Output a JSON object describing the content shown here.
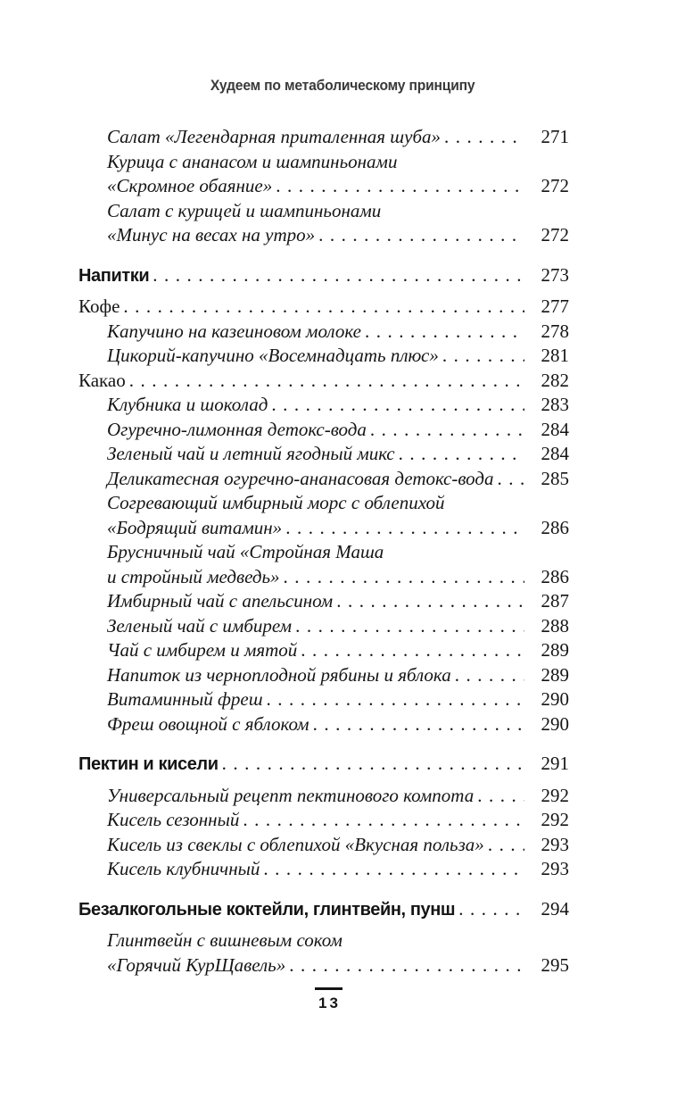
{
  "page": {
    "running_header": "Худеем по метаболическому принципу",
    "footer_page_number": "13"
  },
  "toc": {
    "entries": [
      {
        "style": "recipe",
        "lines": [
          "Салат «Легендарная приталенная шуба»"
        ],
        "page": "271"
      },
      {
        "style": "recipe",
        "lines": [
          "Курица с ананасом и шампиньонами",
          "«Скромное обаяние»"
        ],
        "page": "272"
      },
      {
        "style": "recipe",
        "lines": [
          "Салат с курицей и шампиньонами",
          "«Минус на весах на утро»"
        ],
        "page": "272"
      },
      {
        "style": "section",
        "lines": [
          "Напитки"
        ],
        "page": "273"
      },
      {
        "style": "chapter",
        "lines": [
          "Кофе"
        ],
        "page": "277"
      },
      {
        "style": "recipe",
        "lines": [
          "Капучино на казеиновом молоке"
        ],
        "page": "278"
      },
      {
        "style": "recipe",
        "lines": [
          "Цикорий-капучино «Восемнадцать плюс»"
        ],
        "page": "281"
      },
      {
        "style": "chapter",
        "lines": [
          "Какао"
        ],
        "page": "282"
      },
      {
        "style": "recipe",
        "lines": [
          "Клубника и шоколад"
        ],
        "page": "283"
      },
      {
        "style": "recipe",
        "lines": [
          "Огуречно-лимонная детокс-вода"
        ],
        "page": "284"
      },
      {
        "style": "recipe",
        "lines": [
          "Зеленый чай и летний ягодный микс"
        ],
        "page": "284"
      },
      {
        "style": "recipe",
        "lines": [
          "Деликатесная огуречно-ананасовая детокс-вода"
        ],
        "page": "285"
      },
      {
        "style": "recipe",
        "lines": [
          "Согревающий имбирный морс с облепихой",
          "«Бодрящий витамин»"
        ],
        "page": "286"
      },
      {
        "style": "recipe",
        "lines": [
          "Брусничный чай «Стройная Маша",
          "и стройный медведь»"
        ],
        "page": "286"
      },
      {
        "style": "recipe",
        "lines": [
          "Имбирный чай с апельсином"
        ],
        "page": "287"
      },
      {
        "style": "recipe",
        "lines": [
          "Зеленый чай с имбирем"
        ],
        "page": "288"
      },
      {
        "style": "recipe",
        "lines": [
          "Чай с имбирем и мятой"
        ],
        "page": "289"
      },
      {
        "style": "recipe",
        "lines": [
          "Напиток из черноплодной рябины и яблока"
        ],
        "page": "289"
      },
      {
        "style": "recipe",
        "lines": [
          "Витаминный фреш"
        ],
        "page": "290"
      },
      {
        "style": "recipe",
        "lines": [
          "Фреш овощной с яблоком"
        ],
        "page": "290"
      },
      {
        "style": "section",
        "lines": [
          "Пектин и кисели"
        ],
        "page": "291"
      },
      {
        "style": "recipe",
        "lines": [
          "Универсальный рецепт пектинового компота"
        ],
        "page": "292"
      },
      {
        "style": "recipe",
        "lines": [
          "Кисель сезонный"
        ],
        "page": "292"
      },
      {
        "style": "recipe",
        "lines": [
          "Кисель из свеклы с облепихой «Вкусная польза»"
        ],
        "page": "293"
      },
      {
        "style": "recipe",
        "lines": [
          "Кисель клубничный"
        ],
        "page": "293"
      },
      {
        "style": "section",
        "lines": [
          "Безалкогольные коктейли, глинтвейн, пунш"
        ],
        "page": "294"
      },
      {
        "style": "recipe",
        "lines": [
          "Глинтвейн с вишневым соком",
          "«Горячий КурЩавель»"
        ],
        "page": "295"
      }
    ]
  }
}
